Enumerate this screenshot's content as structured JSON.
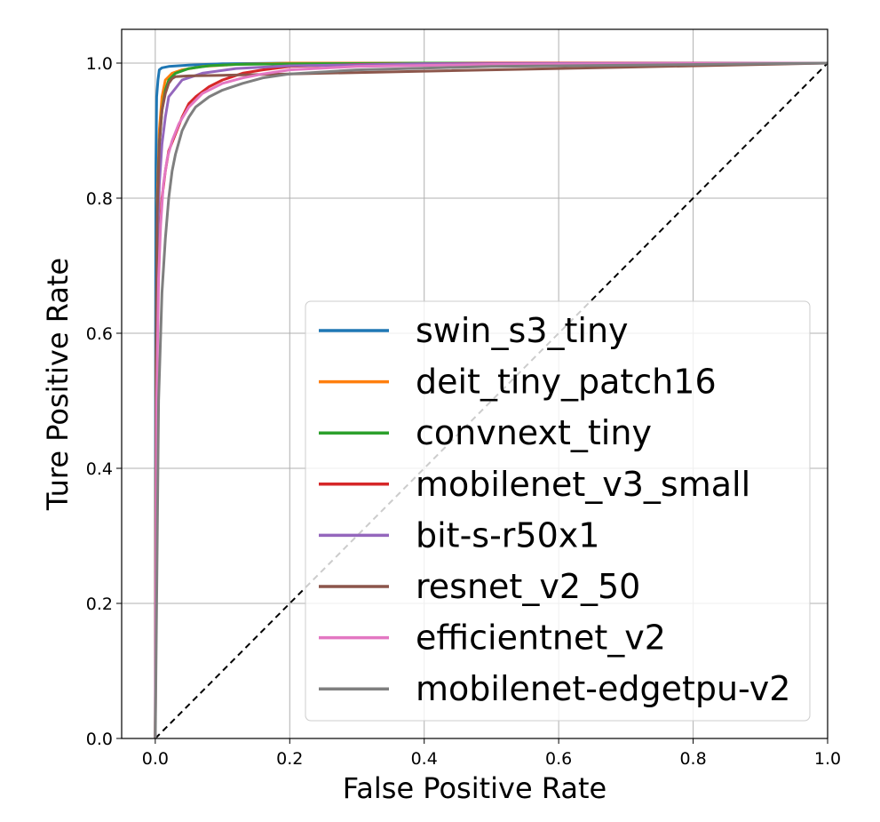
{
  "chart_data": {
    "type": "line",
    "title": "",
    "xlabel": "False Positive Rate",
    "ylabel": "Ture Positive Rate",
    "xlim": [
      -0.05,
      1.0
    ],
    "ylim": [
      0.0,
      1.05
    ],
    "xticks": [
      "0.0",
      "0.2",
      "0.4",
      "0.6",
      "0.8",
      "1.0"
    ],
    "yticks": [
      "0.0",
      "0.2",
      "0.4",
      "0.6",
      "0.8",
      "1.0"
    ],
    "grid": true,
    "legend_position": "lower-right",
    "diagonal": {
      "style": "dashed",
      "color": "#000000",
      "x": [
        0,
        1
      ],
      "y": [
        0,
        1
      ]
    },
    "series": [
      {
        "name": "swin_s3_tiny",
        "color": "#1f77b4",
        "x": [
          0,
          0.0005,
          0.001,
          0.002,
          0.004,
          0.006,
          0.01,
          0.02,
          0.05,
          0.1,
          0.2,
          0.5,
          1.0
        ],
        "y": [
          0,
          0.6,
          0.85,
          0.95,
          0.975,
          0.99,
          0.993,
          0.995,
          0.997,
          0.999,
          1.0,
          1.0,
          1.0
        ]
      },
      {
        "name": "deit_tiny_patch16",
        "color": "#ff7f0e",
        "x": [
          0,
          0.001,
          0.003,
          0.006,
          0.01,
          0.015,
          0.025,
          0.04,
          0.07,
          0.12,
          0.2,
          0.4,
          1.0
        ],
        "y": [
          0,
          0.5,
          0.8,
          0.9,
          0.95,
          0.975,
          0.985,
          0.99,
          0.995,
          0.998,
          1.0,
          1.0,
          1.0
        ]
      },
      {
        "name": "convnext_tiny",
        "color": "#2ca02c",
        "x": [
          0,
          0.001,
          0.003,
          0.006,
          0.01,
          0.015,
          0.02,
          0.03,
          0.05,
          0.08,
          0.12,
          0.2,
          0.4,
          1.0
        ],
        "y": [
          0,
          0.5,
          0.78,
          0.88,
          0.93,
          0.96,
          0.975,
          0.985,
          0.992,
          0.996,
          0.998,
          0.999,
          1.0,
          1.0
        ]
      },
      {
        "name": "mobilenet_v3_small",
        "color": "#d62728",
        "x": [
          0,
          0.002,
          0.005,
          0.01,
          0.015,
          0.02,
          0.03,
          0.04,
          0.05,
          0.06,
          0.08,
          0.1,
          0.13,
          0.16,
          0.2,
          0.3,
          0.5,
          1.0
        ],
        "y": [
          0,
          0.55,
          0.72,
          0.8,
          0.84,
          0.87,
          0.895,
          0.92,
          0.94,
          0.95,
          0.965,
          0.975,
          0.985,
          0.99,
          0.995,
          0.998,
          1.0,
          1.0
        ]
      },
      {
        "name": "bit-s-r50x1",
        "color": "#9467bd",
        "x": [
          0,
          0.001,
          0.003,
          0.006,
          0.01,
          0.015,
          0.02,
          0.04,
          0.07,
          0.12,
          0.2,
          0.4,
          1.0
        ],
        "y": [
          0,
          0.45,
          0.72,
          0.82,
          0.88,
          0.92,
          0.95,
          0.975,
          0.985,
          0.992,
          0.996,
          0.999,
          1.0
        ]
      },
      {
        "name": "resnet_v2_50",
        "color": "#8c564b",
        "x": [
          0,
          0.001,
          0.003,
          0.006,
          0.01,
          0.015,
          0.02,
          0.025,
          0.03,
          0.05,
          0.1,
          0.2,
          0.4,
          0.7,
          1.0
        ],
        "y": [
          0,
          0.55,
          0.78,
          0.88,
          0.93,
          0.955,
          0.97,
          0.977,
          0.98,
          0.981,
          0.982,
          0.984,
          0.988,
          0.994,
          1.0
        ]
      },
      {
        "name": "efficientnet_v2",
        "color": "#e377c2",
        "x": [
          0,
          0.002,
          0.005,
          0.008,
          0.012,
          0.018,
          0.025,
          0.035,
          0.05,
          0.07,
          0.1,
          0.13,
          0.16,
          0.2,
          0.3,
          0.5,
          1.0
        ],
        "y": [
          0,
          0.5,
          0.68,
          0.76,
          0.82,
          0.86,
          0.885,
          0.91,
          0.935,
          0.955,
          0.97,
          0.978,
          0.984,
          0.99,
          0.995,
          0.998,
          1.0
        ]
      },
      {
        "name": "mobilenet-edgetpu-v2",
        "color": "#7f7f7f",
        "x": [
          0,
          0.005,
          0.01,
          0.015,
          0.02,
          0.025,
          0.03,
          0.04,
          0.05,
          0.06,
          0.08,
          0.1,
          0.13,
          0.16,
          0.2,
          0.3,
          0.5,
          1.0
        ],
        "y": [
          0,
          0.5,
          0.66,
          0.74,
          0.8,
          0.84,
          0.865,
          0.9,
          0.92,
          0.935,
          0.95,
          0.96,
          0.97,
          0.978,
          0.984,
          0.99,
          0.995,
          1.0
        ]
      }
    ]
  }
}
